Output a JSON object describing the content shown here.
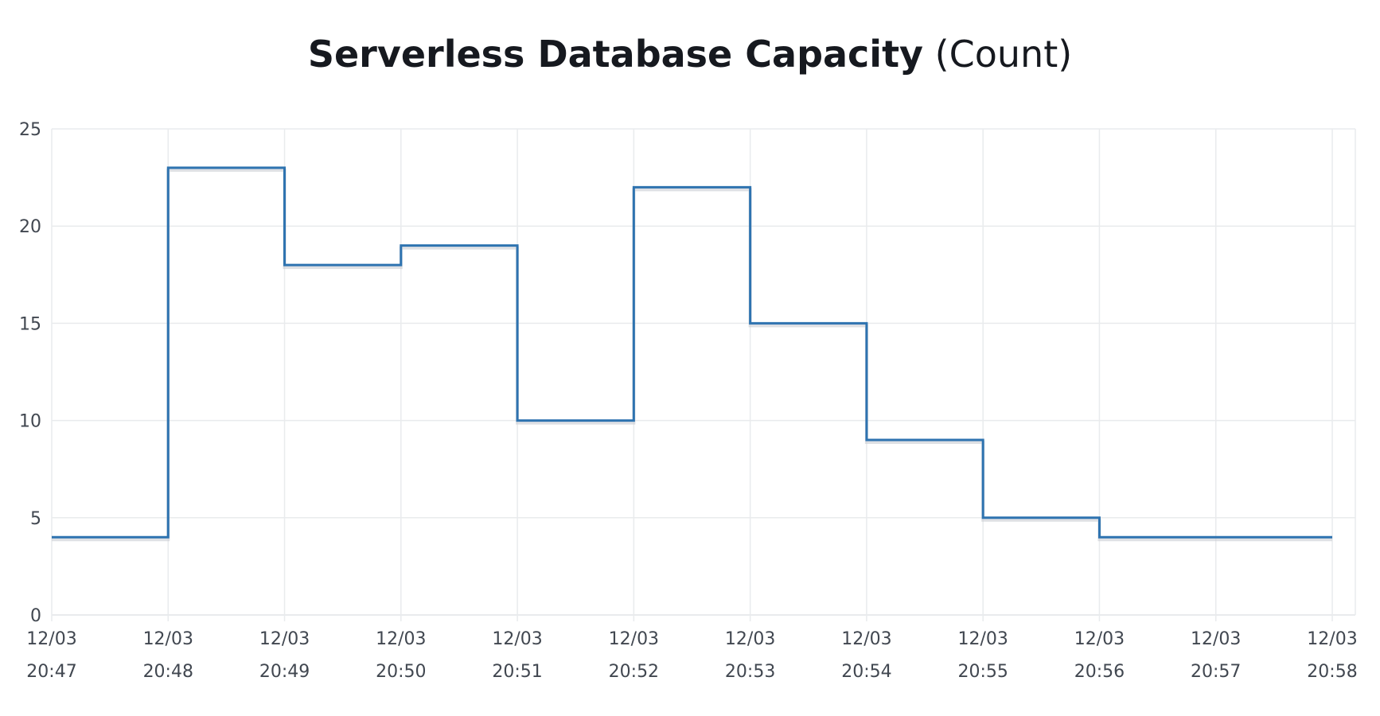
{
  "title": {
    "main": "Serverless Database Capacity",
    "unit": "(Count)"
  },
  "colors": {
    "series": "#2e73b0",
    "grid": "#e9ebed",
    "text": "#16191f",
    "tick_text": "#414750"
  },
  "chart_data": {
    "type": "line",
    "step": true,
    "title": "Serverless Database Capacity (Count)",
    "xlabel": "",
    "ylabel": "",
    "ylim": [
      0,
      25
    ],
    "yticks": [
      0,
      5,
      10,
      15,
      20,
      25
    ],
    "grid": true,
    "legend": "none",
    "x": [
      {
        "date": "12/03",
        "time": "20:47"
      },
      {
        "date": "12/03",
        "time": "20:48"
      },
      {
        "date": "12/03",
        "time": "20:49"
      },
      {
        "date": "12/03",
        "time": "20:50"
      },
      {
        "date": "12/03",
        "time": "20:51"
      },
      {
        "date": "12/03",
        "time": "20:52"
      },
      {
        "date": "12/03",
        "time": "20:53"
      },
      {
        "date": "12/03",
        "time": "20:54"
      },
      {
        "date": "12/03",
        "time": "20:55"
      },
      {
        "date": "12/03",
        "time": "20:56"
      },
      {
        "date": "12/03",
        "time": "20:57"
      },
      {
        "date": "12/03",
        "time": "20:58"
      }
    ],
    "series": [
      {
        "values": [
          4,
          23,
          18,
          19,
          10,
          22,
          15,
          9,
          5,
          4,
          4,
          4
        ]
      }
    ]
  }
}
